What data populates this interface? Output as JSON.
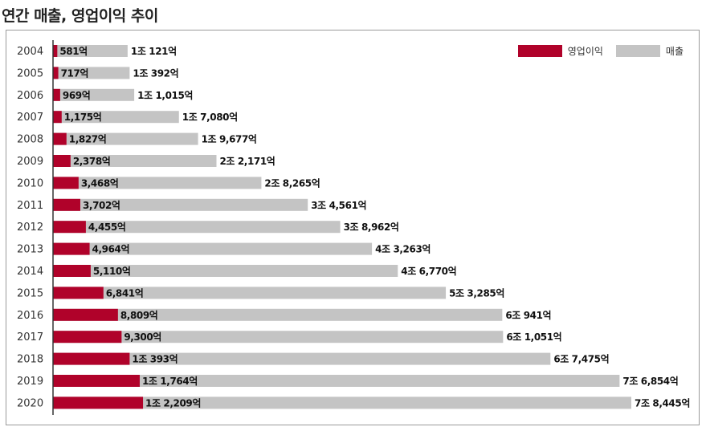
{
  "title": "연간 매출, 영업이익 추이",
  "colors": {
    "operating_profit": "#b0022a",
    "sales": "#c4c4c4",
    "axis": "#333333"
  },
  "legend": {
    "operating_profit": "영업이익",
    "sales": "매출"
  },
  "chart_data": {
    "type": "bar",
    "orientation": "horizontal",
    "title": "연간 매출, 영업이익 추이",
    "unit": "억",
    "legend_position": "top-right",
    "grid": false,
    "categories": [
      "2004",
      "2005",
      "2006",
      "2007",
      "2008",
      "2009",
      "2010",
      "2011",
      "2012",
      "2013",
      "2014",
      "2015",
      "2016",
      "2017",
      "2018",
      "2019",
      "2020"
    ],
    "series": [
      {
        "name": "영업이익",
        "values": [
          581,
          717,
          969,
          1175,
          1827,
          2378,
          3468,
          3702,
          4455,
          4964,
          5110,
          6841,
          8809,
          9300,
          10393,
          11764,
          12209
        ],
        "labels": [
          "581억",
          "717억",
          "969억",
          "1,175억",
          "1,827억",
          "2,378억",
          "3,468억",
          "3,702억",
          "4,455억",
          "4,964억",
          "5,110억",
          "6,841억",
          "8,809억",
          "9,300억",
          "1조 393억",
          "1조 1,764억",
          "1조 2,209억"
        ]
      },
      {
        "name": "매출",
        "values": [
          10121,
          10392,
          11015,
          17080,
          19677,
          22171,
          28265,
          34561,
          38962,
          43263,
          46770,
          53285,
          60941,
          61051,
          67475,
          76854,
          78445
        ],
        "labels": [
          "1조 121억",
          "1조 392억",
          "1조 1,015억",
          "1조 7,080억",
          "1조 9,677억",
          "2조 2,171억",
          "2조 8,265억",
          "3조 4,561억",
          "3조 8,962억",
          "4조 3,263억",
          "4조 6,770억",
          "5조 3,285억",
          "6조 941억",
          "6조 1,051억",
          "6조 7,475억",
          "7조 6,854억",
          "7조 8,445억"
        ]
      }
    ]
  }
}
